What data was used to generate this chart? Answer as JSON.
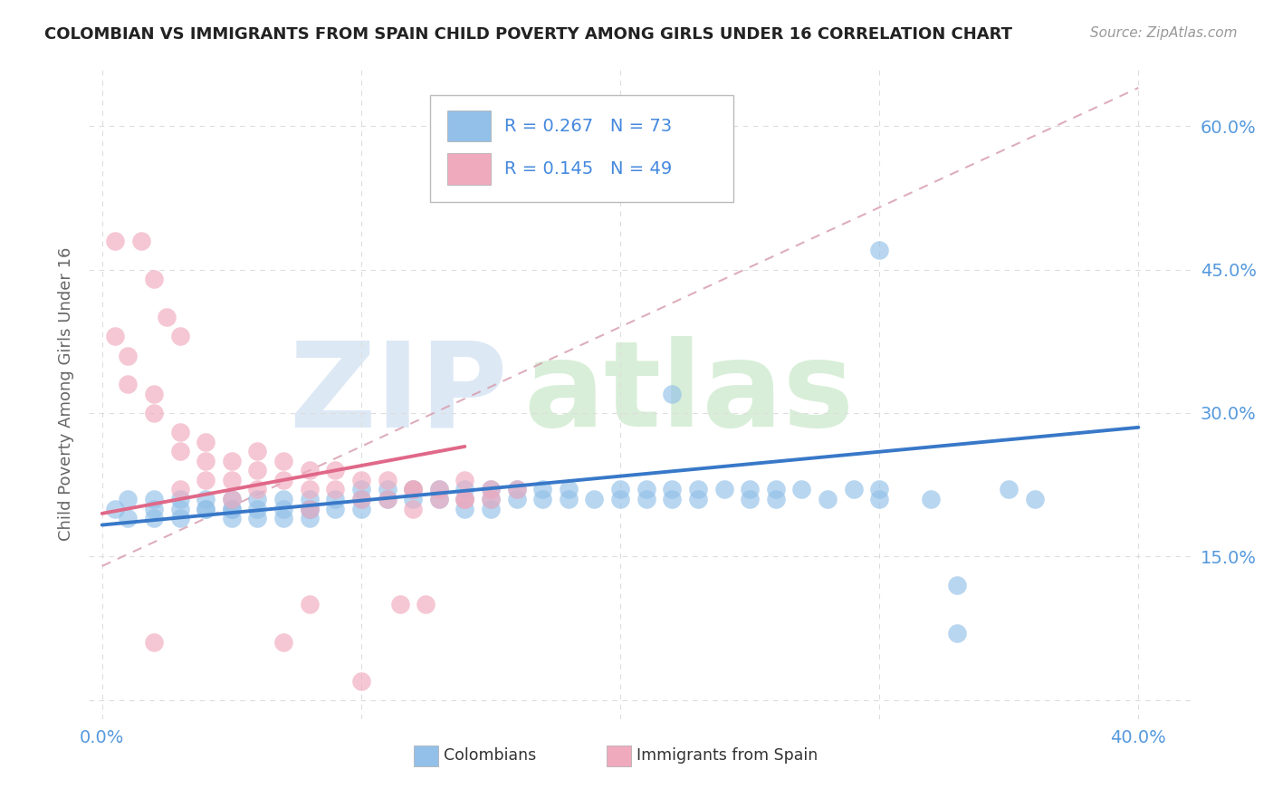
{
  "title": "COLOMBIAN VS IMMIGRANTS FROM SPAIN CHILD POVERTY AMONG GIRLS UNDER 16 CORRELATION CHART",
  "source": "Source: ZipAtlas.com",
  "ylabel": "Child Poverty Among Girls Under 16",
  "xlim": [
    -0.005,
    0.42
  ],
  "ylim": [
    -0.02,
    0.66
  ],
  "xtick_vals": [
    0.0,
    0.1,
    0.2,
    0.3,
    0.4
  ],
  "xtick_labels": [
    "0.0%",
    "",
    "",
    "",
    "40.0%"
  ],
  "ytick_vals": [
    0.0,
    0.15,
    0.3,
    0.45,
    0.6
  ],
  "ytick_labels": [
    "",
    "15.0%",
    "30.0%",
    "45.0%",
    "60.0%"
  ],
  "blue_color": "#92C0E8",
  "pink_color": "#F0AABE",
  "line_blue": "#3878C8",
  "line_pink": "#E06888",
  "line_dash_color": "#D8A0B0",
  "R_col": 0.267,
  "N_col": 73,
  "R_spa": 0.145,
  "N_spa": 49,
  "legend_text_color": "#4488DD",
  "tick_color": "#5599DD",
  "ylabel_color": "#666666",
  "title_color": "#222222",
  "source_color": "#999999",
  "grid_color": "#DDDDDD",
  "watermark_zip_color": "#DDE8F5",
  "watermark_atlas_color": "#D8EED8"
}
